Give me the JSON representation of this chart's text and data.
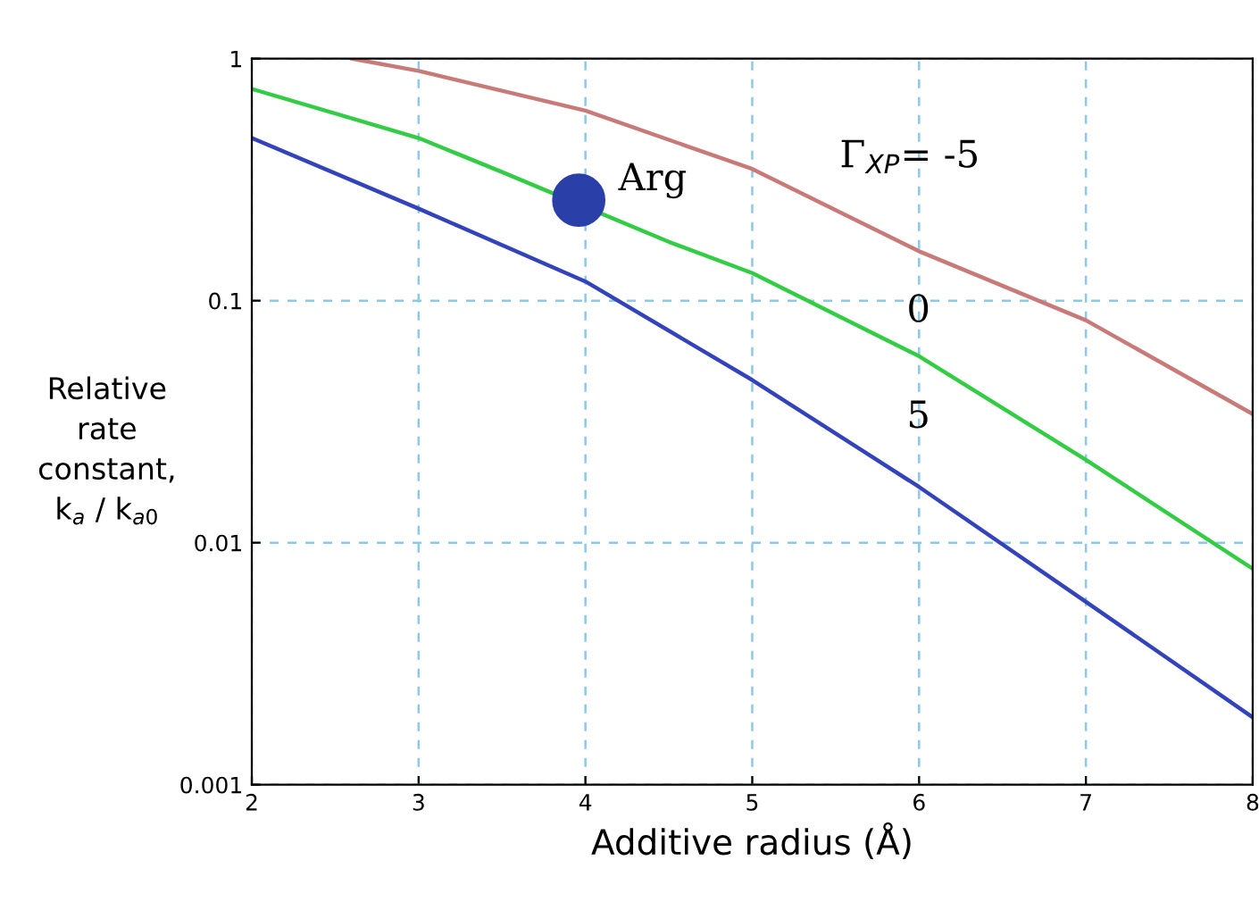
{
  "chart_data": {
    "type": "line",
    "xlabel": "Additive radius (Å)",
    "ylabel": "Relative\nrate\nconstant,\nk$_{a}$ / k$_{a0}$",
    "log": "y",
    "xlim": [
      2,
      8
    ],
    "ylim": [
      0.001,
      1
    ],
    "xticks": [
      2,
      3,
      4,
      5,
      6,
      7,
      8
    ],
    "yticks": [
      0.001,
      0.01,
      0.1,
      1
    ],
    "grid": true,
    "marker": "none",
    "line_style": "solid",
    "series": [
      {
        "name": "Γ$_{XP}$= -5",
        "color": "#c87a78",
        "x": [
          2.6,
          3,
          4,
          5,
          6,
          7,
          8
        ],
        "values": [
          1,
          0.89,
          0.61,
          0.35,
          0.16,
          0.083,
          0.034
        ]
      },
      {
        "name": "0",
        "color": "#33cc44",
        "x": [
          2,
          3,
          3.5,
          4.5,
          5,
          6,
          7,
          8
        ],
        "values": [
          0.75,
          0.47,
          0.34,
          0.175,
          0.13,
          0.059,
          0.022,
          0.0078
        ]
      },
      {
        "name": "5",
        "color": "#3344bb",
        "x": [
          2,
          3,
          4,
          5,
          6,
          7,
          8
        ],
        "values": [
          0.47,
          0.24,
          0.12,
          0.047,
          0.017,
          0.0057,
          0.0019
        ]
      },
      {
        "type": "scatter",
        "color": "#2a3fa8",
        "marker": "circle",
        "x": [
          3.96
        ],
        "values": [
          0.26
        ]
      }
    ],
    "annotations": [
      {
        "text": "Arg",
        "x": 3.96,
        "y": 0.26
      }
    ]
  }
}
